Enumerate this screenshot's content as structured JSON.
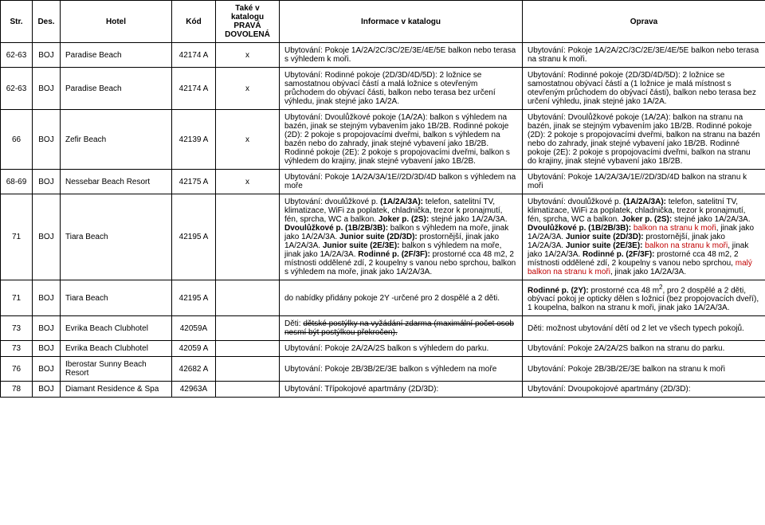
{
  "headers": {
    "str": "Str.",
    "des": "Des.",
    "hotel": "Hotel",
    "kod": "Kód",
    "kat": "Také v katalogu PRAVÁ DOVOLENÁ",
    "info": "Informace v katalogu",
    "oprava": "Oprava"
  },
  "rows": [
    {
      "str": "62-63",
      "des": "BOJ",
      "hotel": "Paradise Beach",
      "kod": "42174 A",
      "kat": "x",
      "info": "Ubytování: Pokoje 1A/2A/2C/3C/2E/3E/4E/5E balkon nebo terasa s výhledem k moři.",
      "oprava": "Ubytování: Pokoje 1A/2A/2C/3C/2E/3E/4E/5E balkon nebo terasa na stranu k moři."
    },
    {
      "str": "62-63",
      "des": "BOJ",
      "hotel": "Paradise Beach",
      "kod": "42174 A",
      "kat": "x",
      "info": "Ubytování: Rodinné pokoje (2D/3D/4D/5D): 2 ložnice se samostatnou obývací částí a malá ložnice s otevřeným průchodem do obývací části, balkon nebo terasa bez určení výhledu, jinak stejné jako 1A/2A.",
      "oprava": "Ubytování: Rodinné pokoje (2D/3D/4D/5D): 2 ložnice se samostatnou obývací částí a (1 ložnice je malá místnost s otevřeným průchodem do obývací části), balkon nebo terasa bez určení výhledu, jinak stejné jako 1A/2A."
    },
    {
      "str": "66",
      "des": "BOJ",
      "hotel": "Zefir Beach",
      "kod": "42139 A",
      "kat": "x",
      "info": "Ubytování: Dvoulůžkové pokoje (1A/2A): balkon s výhledem na bazén, jinak se stejným vybavením jako 1B/2B. Rodinné pokoje (2D): 2 pokoje s propojovacími dveřmi, balkon s výhledem na bazén nebo do zahrady, jinak stejné vybavení jako 1B/2B. Rodinné pokoje (2E): 2 pokoje s propojovacími dveřmi, balkon s výhledem do krajiny, jinak stejné vybavení jako 1B/2B.",
      "oprava": "Ubytování: Dvoulůžkové pokoje (1A/2A): balkon na stranu na bazén, jinak se stejným vybavením jako 1B/2B. Rodinné pokoje (2D): 2 pokoje s propojovacími dveřmi, balkon na stranu na bazén nebo do zahrady, jinak stejné vybavení jako 1B/2B. Rodinné pokoje (2E): 2 pokoje s propojovacími dveřmi, balkon na stranu do krajiny, jinak stejné vybavení jako 1B/2B."
    },
    {
      "str": "68-69",
      "des": "BOJ",
      "hotel": "Nessebar Beach Resort",
      "kod": "42175 A",
      "kat": "x",
      "info": "Ubytování: Pokoje 1A/2A/3A/1E//2D/3D/4D balkon s výhledem na moře",
      "oprava": "Ubytování: Pokoje 1A/2A/3A/1E//2D/3D/4D balkon na stranu k moři"
    },
    {
      "str": "71",
      "des": "BOJ",
      "hotel": "Tiara Beach",
      "kod": "42195 A",
      "kat": "",
      "info_html": " Ubytování: dvoulůžkové p. <b>(1A/2A/3A):</b> telefon, satelitní TV, klimatizace, WiFi za poplatek, chladnička, trezor k pronajmutí, fén, sprcha, WC a balkon. <b>Joker p. (2S):</b> stejné jako 1A/2A/3A. <b>Dvoulůžkové p. (1B/2B/3B):</b> balkon s výhledem na moře, jinak jako 1A/2A/3A. <b>Junior suite (2D/3D):</b> prostornější, jinak jako 1A/2A/3A. <b>Junior suite (2E/3E):</b> balkon s výhledem na moře, jinak jako 1A/2A/3A. <b>Rodinné p. (2F/3F):</b> prostorné cca 48 m2, 2 místnosti oddělené zdí, 2 koupelny s vanou nebo sprchou, balkon s výhledem na moře, jinak jako 1A/2A/3A.",
      "oprava_html": "Ubytování: dvoulůžkové p. <b>(1A/2A/3A):</b> telefon, satelitní TV, klimatizace, WiFi za poplatek, chladnička, trezor k pronajmutí, fén, sprcha, WC a balkon. <b>Joker p. (2S):</b> stejné jako 1A/2A/3A. <b>Dvoulůžkové p. (1B/2B/3B):</b> <span class=\"red\">balkon na stranu k moři</span>, jinak jako 1A/2A/3A. <b>Junior suite (2D/3D):</b> prostornější, jinak jako 1A/2A/3A. <b>Junior suite (2E/3E):</b> <span class=\"red\">balkon na stranu k moři</span>, jinak jako 1A/2A/3A. <b>Rodinné p. (2F/3F):</b> prostorné cca 48 m2, 2 místnosti oddělené zdí, 2 koupelny s vanou nebo sprchou, <span class=\"red\">malý balkon na stranu k moři</span>, jinak jako 1A/2A/3A."
    },
    {
      "str": "71",
      "des": "BOJ",
      "hotel": "Tiara Beach",
      "kod": "42195 A",
      "kat": "",
      "info": "do nabídky přidány pokoje 2Y -určené pro 2 dospělé a 2 děti.",
      "oprava_html": "<b>Rodinné p. (2Y):</b> prostorné cca 48 m<span class=\"sup\">2</span>, pro 2 dospělé a 2 děti, obývací pokoj je opticky dělen s ložnicí (bez propojovacích dveří), 1 koupelna, balkon na stranu k moři, jinak jako 1A/2A/3A."
    },
    {
      "str": "73",
      "des": "BOJ",
      "hotel": "Evrika Beach Clubhotel",
      "kod": "42059A",
      "kat": "",
      "info_html": "Děti: <span class=\"strike\">dětské postýlky na vyžádání zdarma (maximální počet osob nesmí být postýlkou překročen).</span>",
      "oprava": "Děti: možnost ubytování dětí od 2 let ve všech typech pokojů."
    },
    {
      "str": "73",
      "des": "BOJ",
      "hotel": "Evrika Beach Clubhotel",
      "kod": "42059 A",
      "kat": "",
      "info": "Ubytování: Pokoje 2A/2A/2S balkon s výhledem do parku.",
      "oprava": "Ubytování: Pokoje 2A/2A/2S balkon na stranu do parku."
    },
    {
      "str": "76",
      "des": "BOJ",
      "hotel": "Iberostar Sunny Beach Resort",
      "kod": "42682 A",
      "kat": "",
      "info": "Ubytování: Pokoje 2B/3B/2E/3E balkon s výhledem na moře",
      "oprava": "Ubytování: Pokoje 2B/3B/2E/3E balkon na stranu k moři"
    },
    {
      "str": "78",
      "des": "BOJ",
      "hotel": "Diamant Residence & Spa",
      "kod": "42963A",
      "kat": "",
      "info": "Ubytování: Třípokojové apartmány (2D/3D):",
      "oprava": "Ubytování: Dvoupokojové apartmány (2D/3D):"
    }
  ]
}
